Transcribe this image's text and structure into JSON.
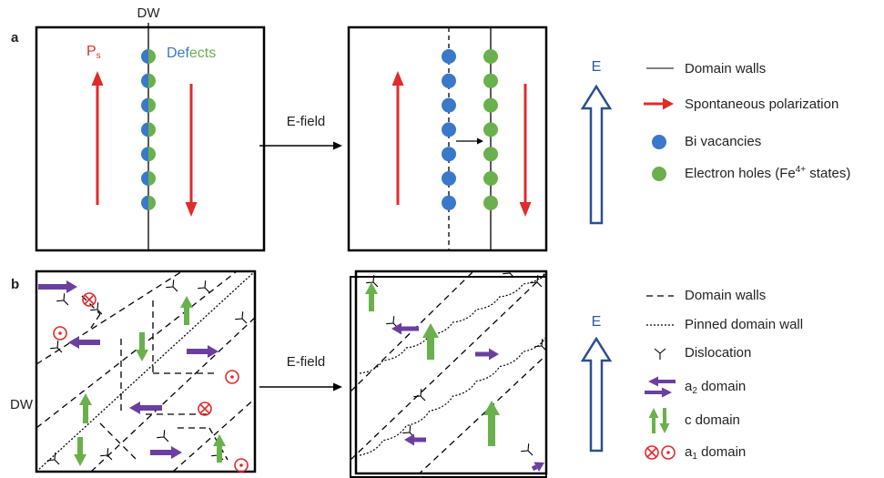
{
  "panel_a": {
    "label": "a",
    "dw_label": "DW",
    "ps_label": {
      "main": "P",
      "sub": "s"
    },
    "defects_label": {
      "part1": "Def",
      "part2": "ects"
    },
    "arrow_label": "E-field",
    "field_label": "E",
    "legend": {
      "domain_walls": "Domain walls",
      "polarization": "Spontaneous polarization",
      "bi_vacancies": "Bi vacancies",
      "electron_holes": {
        "before": "Electron holes (Fe",
        "sup": "4+",
        "after": " states)"
      }
    }
  },
  "panel_b": {
    "label": "b",
    "dw_label": "DW",
    "arrow_label": "E-field",
    "field_label": "E",
    "legend": {
      "domain_walls": "Domain walls",
      "pinned": "Pinned domain wall",
      "dislocation": "Dislocation",
      "a2": {
        "main": "a",
        "sub": "2",
        "after": " domain"
      },
      "c": "c domain",
      "a1": {
        "main": "a",
        "sub": "1",
        "after": " domain"
      }
    }
  }
}
